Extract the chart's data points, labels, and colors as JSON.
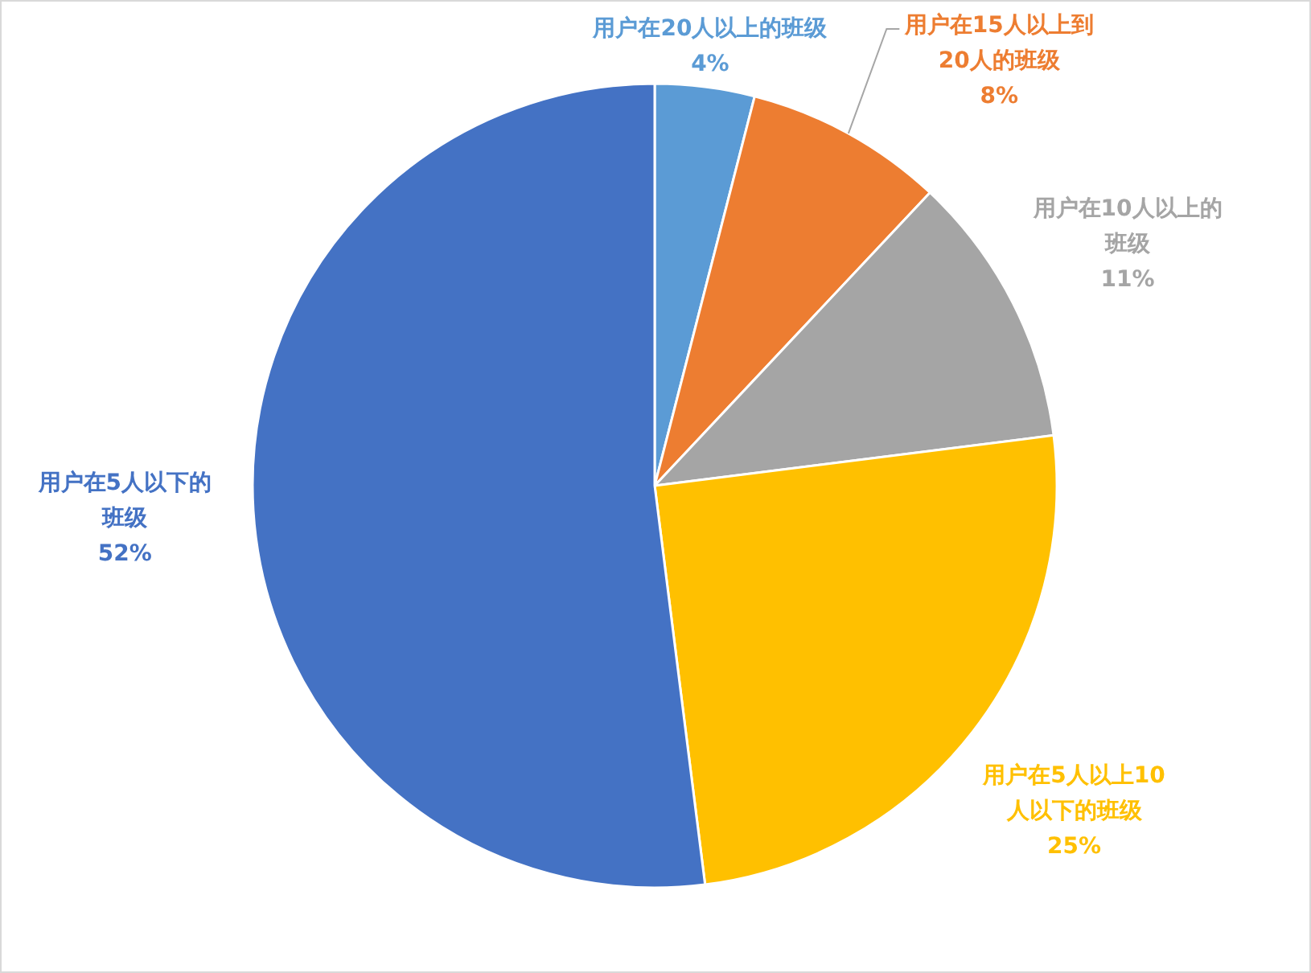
{
  "chart_data": {
    "type": "pie",
    "categories": [
      "用户在20人以上的班级",
      "用户在15人以上到20人的班级",
      "用户在10人以上的班级",
      "用户在5人以上10人以下的班级",
      "用户在5人以下的班级"
    ],
    "values": [
      4,
      8,
      11,
      25,
      52
    ],
    "colors": [
      "#5b9bd5",
      "#ed7d31",
      "#a5a5a5",
      "#ffc000",
      "#4472c4"
    ],
    "value_labels": [
      "4%",
      "8%",
      "11%",
      "25%",
      "52%"
    ]
  }
}
